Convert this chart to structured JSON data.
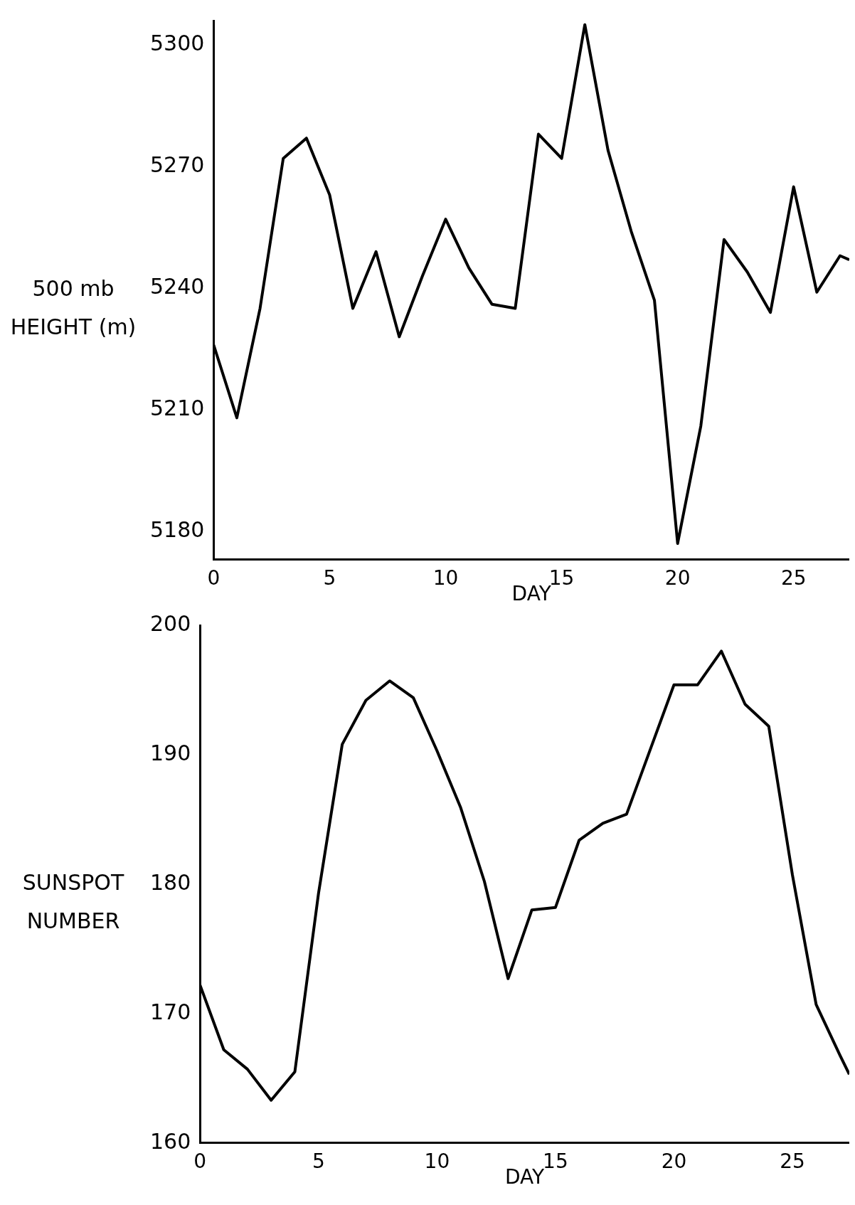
{
  "chart_data": [
    {
      "type": "line",
      "xlabel": "DAY",
      "ylabel": "500 mb HEIGHT (m)",
      "x": [
        0,
        1,
        2,
        3,
        4,
        5,
        6,
        7,
        8,
        9,
        10,
        11,
        12,
        13,
        14,
        15,
        16,
        17,
        18,
        19,
        20,
        21,
        22,
        23,
        24,
        25,
        26,
        27,
        27.4
      ],
      "series": [
        {
          "color": "#000000",
          "values": [
            5226,
            5208,
            5235,
            5272,
            5277,
            5263,
            5235,
            5249,
            5228,
            5243,
            5257,
            5245,
            5236,
            5235,
            5278,
            5272,
            5305,
            5274,
            5254,
            5237,
            5177,
            5206,
            5252,
            5244,
            5234,
            5265,
            5239,
            5248,
            5247
          ]
        }
      ],
      "xlim": [
        0,
        27.4
      ],
      "xticks": [
        0,
        5,
        10,
        15,
        20,
        25
      ],
      "ylim": [
        5173,
        5306
      ],
      "yticks": [
        5180,
        5210,
        5240,
        5270,
        5300
      ],
      "grid": false,
      "legend": false,
      "marker": "none",
      "line_style": "solid"
    },
    {
      "type": "line",
      "xlabel": "DAY",
      "ylabel": "SUNSPOT NUMBER",
      "x": [
        0,
        1,
        2,
        3,
        4,
        5,
        6,
        7,
        8,
        9,
        10,
        11,
        12,
        13,
        14,
        15,
        16,
        17,
        18,
        19,
        20,
        21,
        22,
        23,
        24,
        25,
        26,
        27,
        27.4
      ],
      "series": [
        {
          "color": "#000000",
          "values": [
            172.2,
            167.2,
            165.7,
            163.3,
            165.5,
            179.3,
            190.8,
            194.2,
            195.7,
            194.4,
            190.3,
            185.9,
            180.2,
            172.7,
            178.0,
            178.2,
            183.4,
            184.7,
            185.4,
            190.4,
            195.4,
            195.4,
            198.0,
            193.9,
            192.2,
            180.7,
            170.7,
            166.8,
            165.3
          ]
        }
      ],
      "xlim": [
        0,
        27.4
      ],
      "xticks": [
        0,
        5,
        10,
        15,
        20,
        25
      ],
      "ylim": [
        160,
        200
      ],
      "yticks": [
        160,
        170,
        180,
        190,
        200
      ],
      "grid": false,
      "legend": false,
      "marker": "none",
      "line_style": "solid"
    }
  ]
}
